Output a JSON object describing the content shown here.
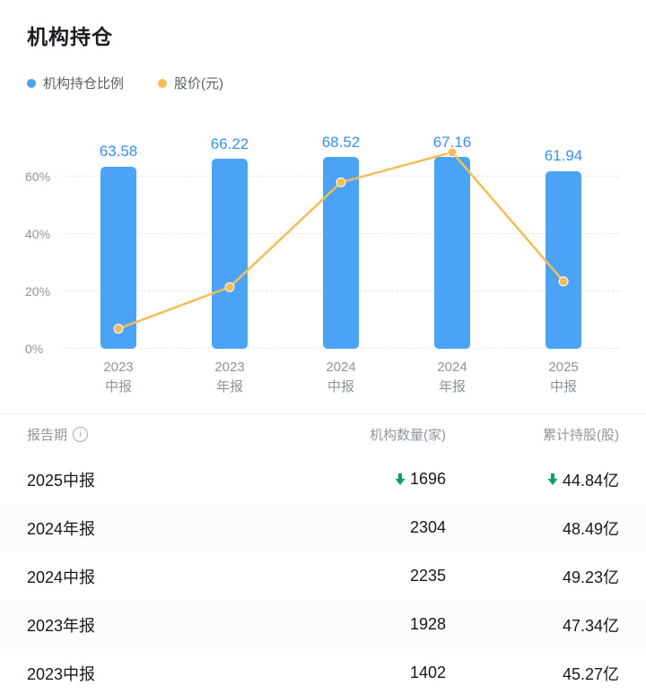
{
  "page": {
    "title": "机构持仓"
  },
  "legend": {
    "items": [
      {
        "label": "机构持仓比例",
        "color": "#4aa3f5"
      },
      {
        "label": "股价(元)",
        "color": "#f6bc55"
      }
    ]
  },
  "chart_data": {
    "type": "bar+line",
    "categories": [
      {
        "line1": "2023",
        "line2": "中报"
      },
      {
        "line1": "2023",
        "line2": "年报"
      },
      {
        "line1": "2024",
        "line2": "中报"
      },
      {
        "line1": "2024",
        "line2": "年报"
      },
      {
        "line1": "2025",
        "line2": "中报"
      }
    ],
    "series": [
      {
        "name": "机构持仓比例",
        "type": "bar",
        "unit": "%",
        "color": "#4aa3f5",
        "values": [
          63.58,
          66.22,
          68.52,
          67.16,
          61.94
        ]
      },
      {
        "name": "股价(元)",
        "type": "line",
        "color": "#f6bc55",
        "axis_positions_pct": [
          7,
          21.5,
          58,
          68.5,
          23.5
        ],
        "note": "price values not labeled on chart; points plotted against left % axis"
      }
    ],
    "yticks": [
      0,
      20,
      40,
      60
    ],
    "ytick_suffix": "%",
    "ylim": [
      0,
      75
    ],
    "grid": "dashed horizontal",
    "value_label_color": "#3a8df2"
  },
  "table": {
    "headers": [
      "报告期",
      "机构数量(家)",
      "累计持股(股)"
    ],
    "rows": [
      {
        "period": "2025中报",
        "count": "1696",
        "count_down": true,
        "shares": "44.84亿",
        "shares_down": true
      },
      {
        "period": "2024年报",
        "count": "2304",
        "count_down": false,
        "shares": "48.49亿",
        "shares_down": false
      },
      {
        "period": "2024中报",
        "count": "2235",
        "count_down": false,
        "shares": "49.23亿",
        "shares_down": false
      },
      {
        "period": "2023年报",
        "count": "1928",
        "count_down": false,
        "shares": "47.34亿",
        "shares_down": false
      },
      {
        "period": "2023中报",
        "count": "1402",
        "count_down": false,
        "shares": "45.27亿",
        "shares_down": false
      }
    ]
  },
  "icons": {
    "info_glyph": "i",
    "down_arrow_color": "#0ba05e"
  }
}
